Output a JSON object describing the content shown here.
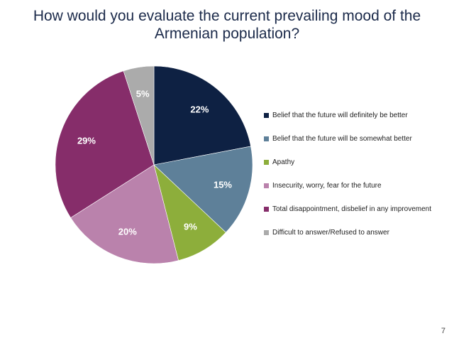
{
  "title_line1": "How would you evaluate the current prevailing mood of the",
  "title_line2": "Armenian population?",
  "page_number": "7",
  "chart_data": {
    "type": "pie",
    "start_angle_deg": 0,
    "direction": "clockwise",
    "legend_position": "right",
    "slices": [
      {
        "label": "Belief that the future will definitely be better",
        "value": 22,
        "value_label": "22%",
        "color": "#0e2143"
      },
      {
        "label": "Belief that the future will be somewhat better",
        "value": 15,
        "value_label": "15%",
        "color": "#5e8099"
      },
      {
        "label": "Apathy",
        "value": 9,
        "value_label": "9%",
        "color": "#8dae3b"
      },
      {
        "label": "Insecurity, worry, fear for the future",
        "value": 20,
        "value_label": "20%",
        "color": "#ba82ac"
      },
      {
        "label": "Total disappointment, disbelief in any improvement",
        "value": 29,
        "value_label": "29%",
        "color": "#862d6a"
      },
      {
        "label": "Difficult to answer/Refused to answer",
        "value": 5,
        "value_label": "5%",
        "color": "#ababab"
      }
    ]
  }
}
